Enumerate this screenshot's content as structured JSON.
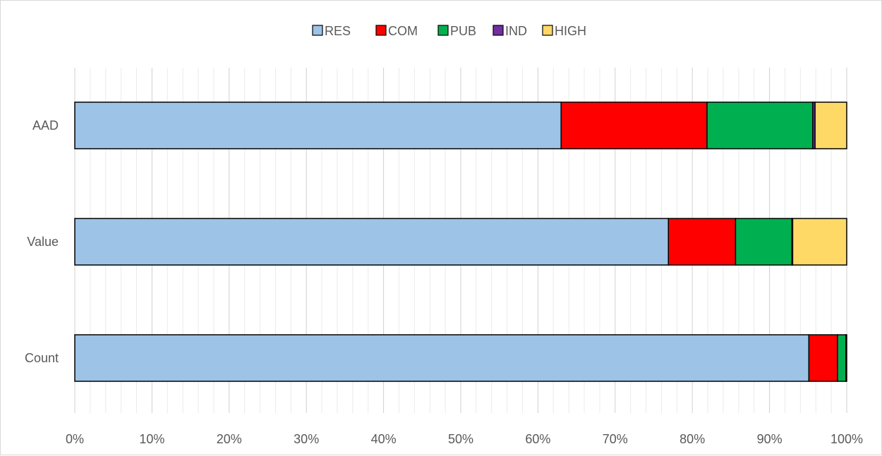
{
  "chart_data": {
    "type": "bar",
    "orientation": "horizontal",
    "stacked": "percent",
    "title": "",
    "xlabel": "",
    "ylabel": "",
    "categories": [
      "AAD",
      "Value",
      "Count"
    ],
    "series": [
      {
        "name": "RES",
        "color": "#9dc3e6",
        "values": [
          63.0,
          76.9,
          95.1
        ]
      },
      {
        "name": "COM",
        "color": "#ff0000",
        "values": [
          18.9,
          8.7,
          3.7
        ]
      },
      {
        "name": "PUB",
        "color": "#00b050",
        "values": [
          13.7,
          7.3,
          1.1
        ]
      },
      {
        "name": "IND",
        "color": "#7030a0",
        "values": [
          0.3,
          0.1,
          0.0
        ]
      },
      {
        "name": "HIGH",
        "color": "#ffd966",
        "values": [
          4.1,
          7.0,
          0.1
        ]
      }
    ],
    "xlim": [
      0,
      100
    ],
    "xticks": [
      "0%",
      "10%",
      "20%",
      "30%",
      "40%",
      "50%",
      "60%",
      "70%",
      "80%",
      "90%",
      "100%"
    ],
    "grid": true,
    "legend_position": "top"
  }
}
